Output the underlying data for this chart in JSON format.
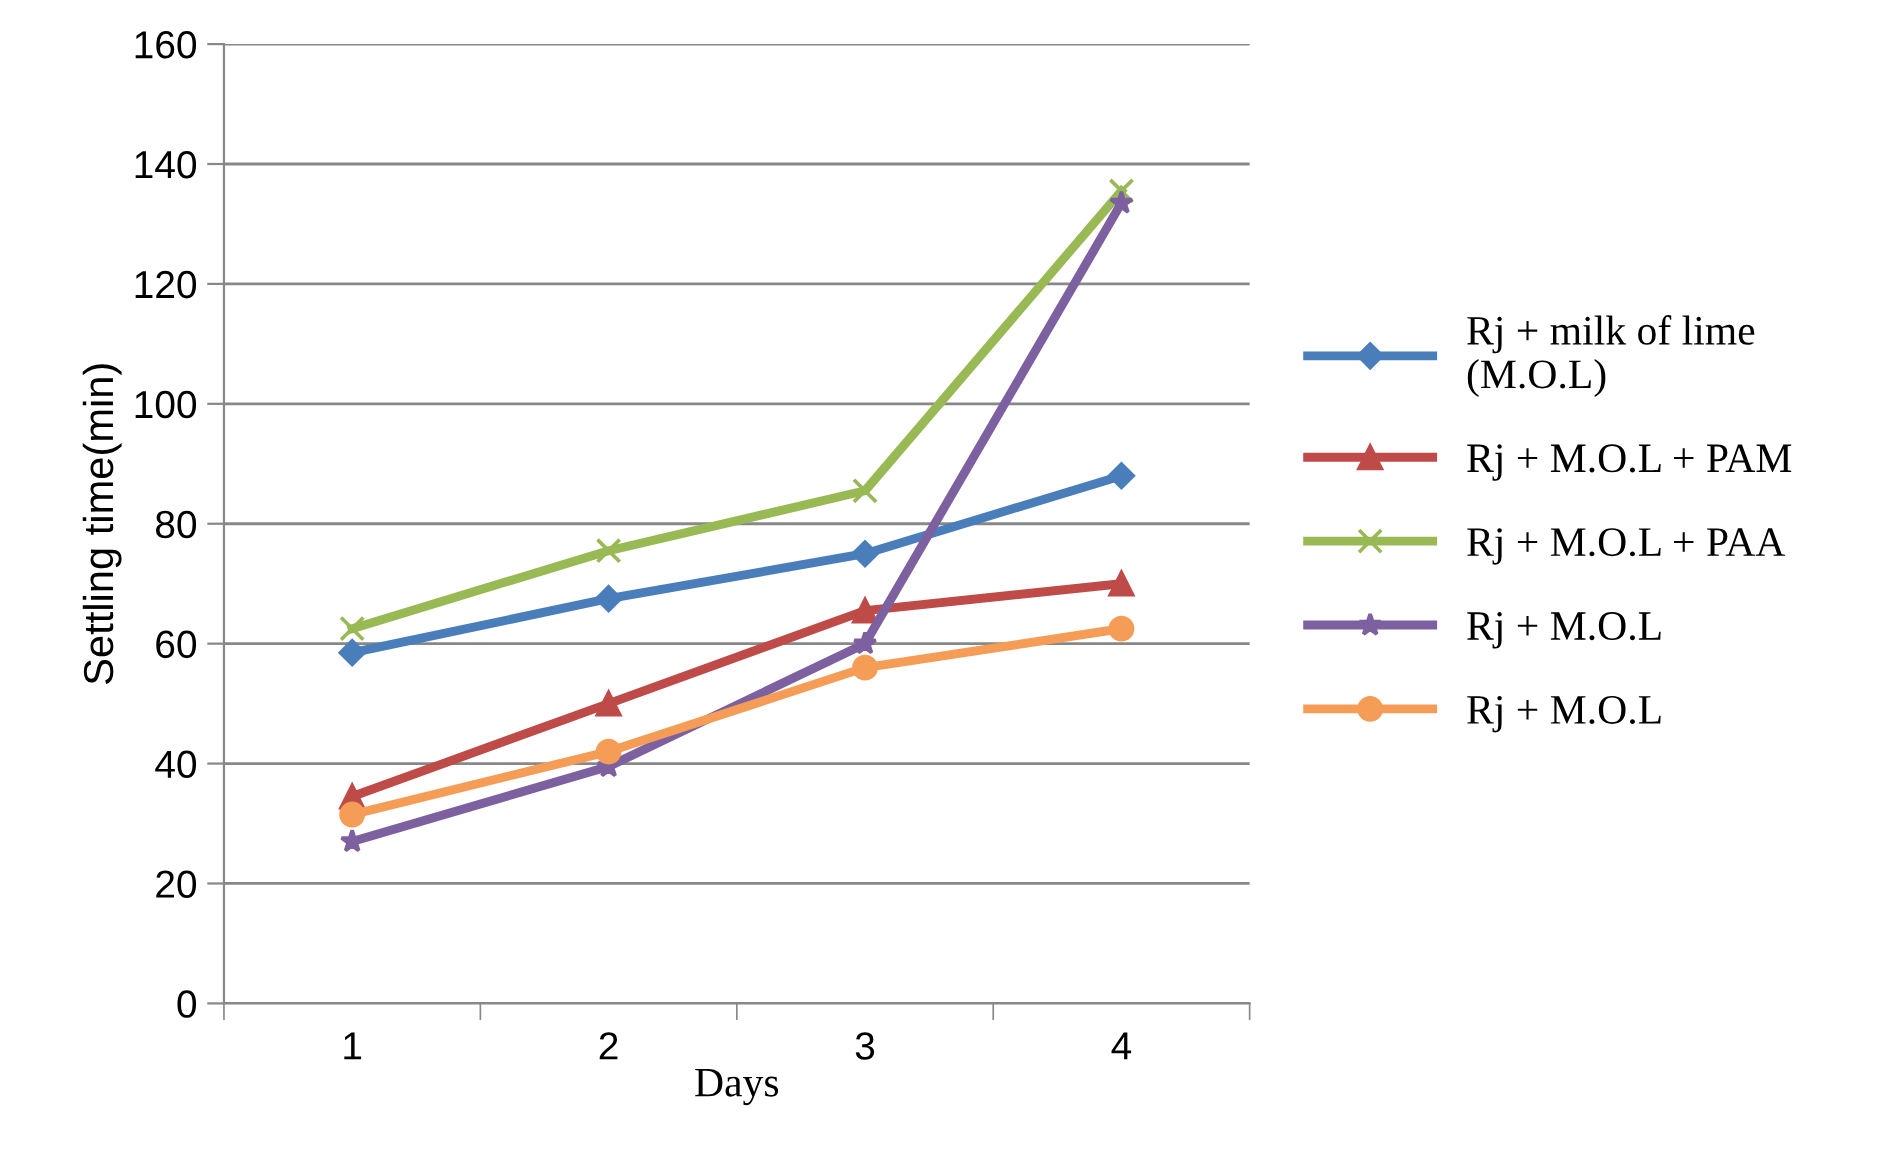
{
  "chart_data": {
    "type": "line",
    "xlabel": "Days",
    "ylabel": "Settling time(min)",
    "categories": [
      "1",
      "2",
      "3",
      "4"
    ],
    "series": [
      {
        "name": "Rj + milk of lime\n(M.O.L)",
        "color": "#4a7ebb",
        "marker": "diamond",
        "values": [
          58.5,
          67.5,
          75,
          88
        ]
      },
      {
        "name": "Rj + M.O.L + PAM",
        "color": "#be4b48",
        "marker": "triangle",
        "values": [
          34.5,
          50,
          65.5,
          70
        ]
      },
      {
        "name": "Rj + M.O.L + PAA",
        "color": "#98b954",
        "marker": "cross",
        "values": [
          62.5,
          75.5,
          85.5,
          135.5
        ]
      },
      {
        "name": "Rj + M.O.L",
        "color": "#7d60a0",
        "marker": "star",
        "values": [
          27,
          39.5,
          60,
          133.5
        ]
      },
      {
        "name": "Rj + M.O.L",
        "color": "#f59d56",
        "marker": "circle",
        "values": [
          31.5,
          42,
          56,
          62.5
        ]
      }
    ],
    "ylim": [
      0,
      160
    ],
    "yticks": [
      0,
      20,
      40,
      60,
      80,
      100,
      120,
      140,
      160
    ],
    "grid": "y",
    "legend": "right",
    "line_style": "solid"
  }
}
